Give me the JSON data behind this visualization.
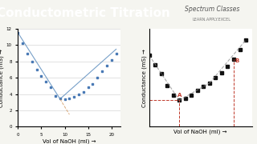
{
  "title": "Conductometric Titration",
  "title_bg": "#c0392b",
  "title_color": "#ffffff",
  "logo_text": "Spectrum Classes",
  "logo_sub": "LEARN.APPLY.EXCEL",
  "bg_color": "#f5f5f0",
  "graph_bg": "#ffffff",
  "left_graph": {
    "xlabel": "Vol of NaOH (ml) →",
    "ylabel": "Conductance (mS) →",
    "x_data": [
      0,
      1,
      2,
      3,
      4,
      5,
      6,
      7,
      8,
      9,
      10,
      11,
      12,
      13,
      14,
      15,
      16,
      17,
      18,
      19,
      20,
      21
    ],
    "y_data": [
      11.5,
      10.2,
      9.0,
      8.0,
      7.0,
      6.2,
      5.5,
      4.8,
      3.8,
      3.5,
      3.4,
      3.5,
      3.7,
      4.0,
      4.3,
      4.8,
      5.2,
      6.0,
      6.8,
      7.5,
      8.2,
      9.0
    ],
    "line1_x": [
      0,
      9
    ],
    "line1_y": [
      11.5,
      3.4
    ],
    "line2_x": [
      9,
      21
    ],
    "line2_y": [
      3.4,
      9.5
    ],
    "line3_x": [
      9,
      11
    ],
    "line3_y": [
      2.0,
      3.5
    ],
    "xlim": [
      0,
      22
    ],
    "ylim": [
      0,
      12
    ],
    "xticks": [
      0,
      5,
      10,
      15,
      20
    ],
    "yticks": [
      0,
      2,
      4,
      6,
      8,
      10,
      12
    ],
    "marker_color": "#4a7ab5",
    "line_color": "#5588bb"
  },
  "right_graph": {
    "xlabel": "Vol of NaOH (ml) →",
    "ylabel": "Conductance (mS) →",
    "x_data": [
      0,
      1,
      2,
      3,
      4,
      5,
      6,
      7,
      8,
      9,
      10,
      11,
      12,
      13,
      14,
      15,
      16
    ],
    "y_data": [
      9.5,
      8.2,
      7.0,
      5.5,
      4.2,
      3.5,
      3.8,
      4.2,
      4.8,
      5.3,
      5.8,
      6.5,
      7.2,
      8.0,
      9.0,
      10.2,
      11.5
    ],
    "point_A_x": 5,
    "point_A_y": 3.5,
    "point_B_x": 14,
    "point_B_y": 9.0,
    "line1_x": [
      0,
      5
    ],
    "line1_y": [
      9.5,
      3.5
    ],
    "line2_x": [
      5,
      10
    ],
    "line2_y": [
      3.5,
      5.8
    ],
    "line3_x": [
      10,
      16
    ],
    "line3_y": [
      5.8,
      11.5
    ],
    "marker_color": "#111111",
    "line_color": "#888888",
    "dashed_color": "#c0392b",
    "label_color": "#c0392b"
  }
}
